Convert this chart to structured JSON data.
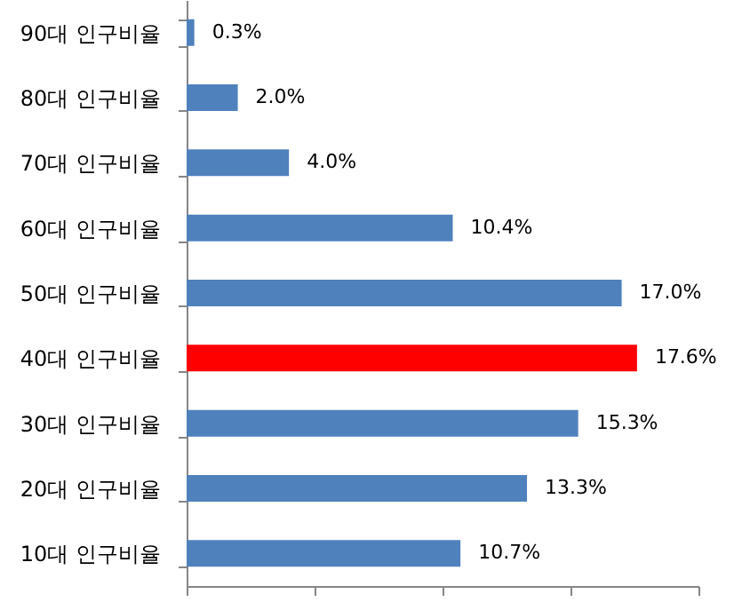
{
  "chart_data": {
    "type": "bar",
    "orientation": "horizontal",
    "categories": [
      "90대 인구비율",
      "80대 인구비율",
      "70대 인구비율",
      "60대 인구비율",
      "50대 인구비율",
      "40대 인구비율",
      "30대 인구비율",
      "20대 인구비율",
      "10대 인구비율"
    ],
    "values": [
      0.3,
      2.0,
      4.0,
      10.4,
      17.0,
      17.6,
      15.3,
      13.3,
      10.7
    ],
    "colors": [
      "#4f81bd",
      "#4f81bd",
      "#4f81bd",
      "#4f81bd",
      "#4f81bd",
      "#ff0000",
      "#4f81bd",
      "#4f81bd",
      "#4f81bd"
    ],
    "value_labels": [
      "0.3%",
      "2.0%",
      "4.0%",
      "10.4%",
      "17.0%",
      "17.6%",
      "15.3%",
      "13.3%",
      "10.7%"
    ],
    "xlim": [
      0,
      20
    ],
    "xticks": [
      {
        "value": 0,
        "label": null
      },
      {
        "value": 5,
        "label": null
      },
      {
        "value": 10,
        "label": null
      },
      {
        "value": 15,
        "label": null
      },
      {
        "value": 20,
        "label": null
      }
    ],
    "tick_labels": "y",
    "grid": false,
    "legend": false
  }
}
